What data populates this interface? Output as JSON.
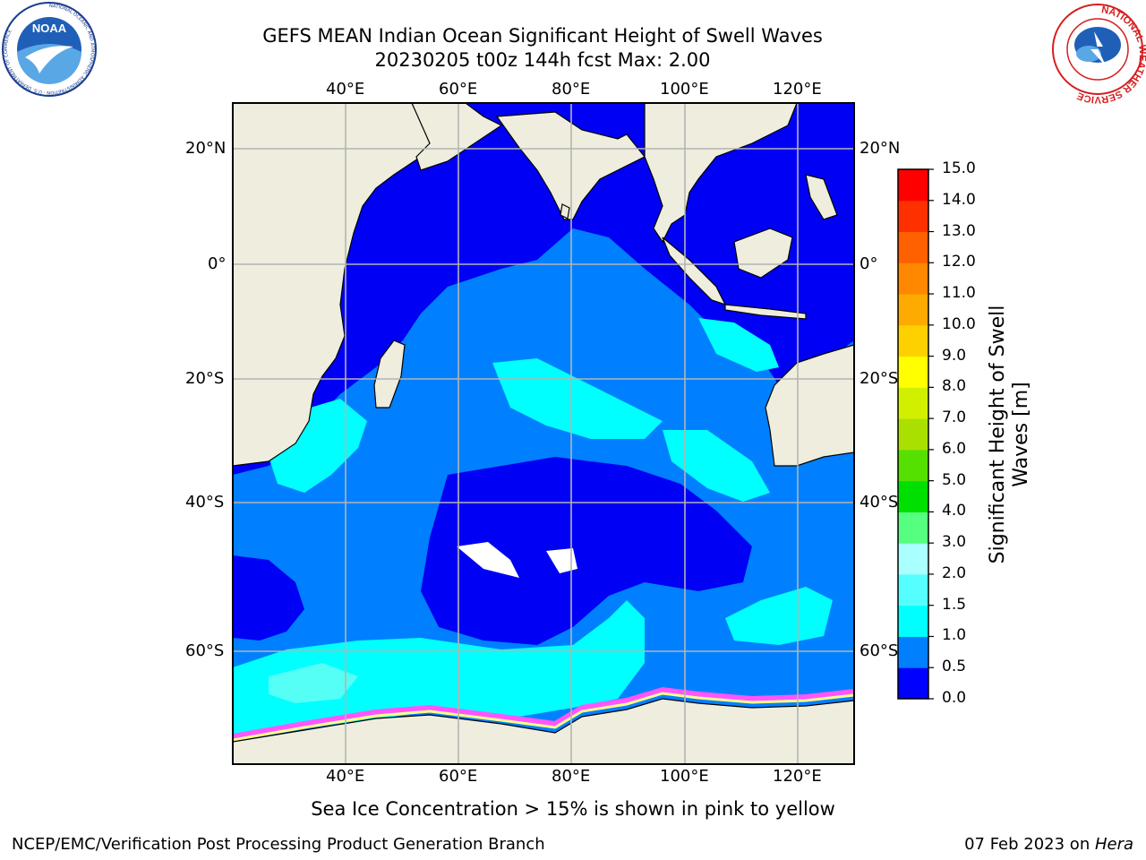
{
  "header": {
    "title": "GEFS MEAN Indian Ocean Significant Height of Swell Waves",
    "subtitle": "20230205 t00z 144h fcst   Max: 2.00"
  },
  "logos": {
    "left": "NOAA",
    "left_ring_text": "NATIONAL OCEANIC AND ATMOSPHERIC ADMINISTRATION · U.S. DEPARTMENT OF COMMERCE",
    "right_ring_text": "NATIONAL WEATHER SERVICE"
  },
  "map": {
    "lon_labels": [
      "40°E",
      "60°E",
      "80°E",
      "100°E",
      "120°E"
    ],
    "lat_labels": [
      "20°N",
      "0°",
      "20°S",
      "40°S",
      "60°S"
    ],
    "colors": {
      "land": "#eeedde",
      "level_0": "#0000f5",
      "level_1": "#0080ff",
      "level_2": "#00ffff",
      "level_3": "#55fff5",
      "ice_edge": "#ff55ff",
      "grid": "#b4b4b4"
    }
  },
  "colorbar": {
    "title_line1": "Significant Height of Swell",
    "title_line2": "Waves [m]",
    "ticks": [
      "15.0",
      "14.0",
      "13.0",
      "12.0",
      "11.0",
      "10.0",
      "9.0",
      "8.0",
      "7.0",
      "6.0",
      "5.0",
      "4.0",
      "3.0",
      "2.0",
      "1.5",
      "1.0",
      "0.5",
      "0.0"
    ],
    "colors": [
      "#0000ff",
      "#0080ff",
      "#00ffff",
      "#55ffff",
      "#aaffff",
      "#55ff80",
      "#00e000",
      "#55e000",
      "#aae000",
      "#d0f000",
      "#ffff00",
      "#ffd000",
      "#ffaa00",
      "#ff8800",
      "#ff6000",
      "#ff3000",
      "#ff0000"
    ]
  },
  "notes": {
    "ice_note": "Sea Ice Concentration > 15% is shown in pink to yellow"
  },
  "footer": {
    "left": "NCEP/EMC/Verification Post Processing Product Generation Branch",
    "right_prefix": "07 Feb 2023 on ",
    "right_emph": "Hera"
  }
}
